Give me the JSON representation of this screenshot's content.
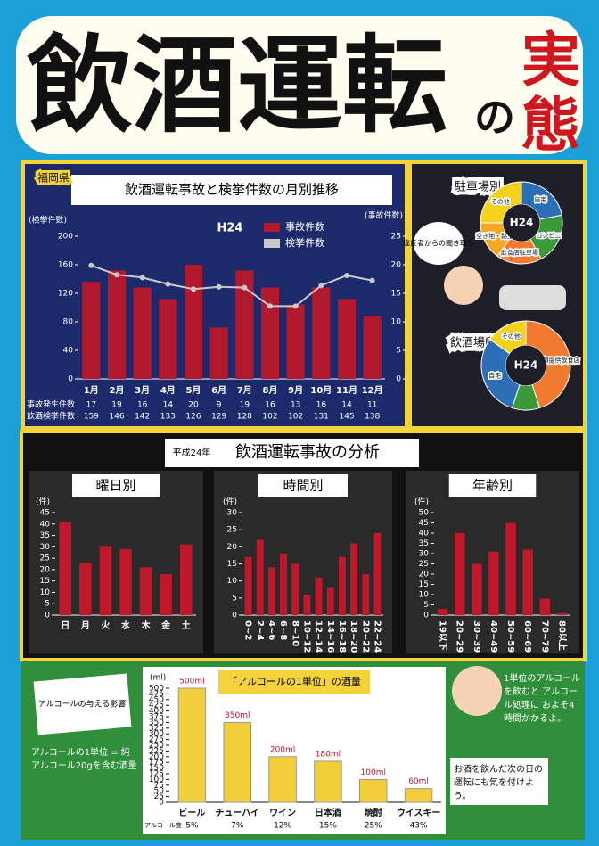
{
  "poster": {
    "title": "飲酒運転",
    "title_no": "の",
    "title_jitsu": "実",
    "title_tai": "態",
    "bubble": "違反者からの聞き取り"
  },
  "analysis": {
    "era": "平成24年",
    "title": "飲酒運転事故の分析"
  },
  "notes": {
    "effect": "アルコールの与える影響",
    "unit_def": "アルコールの1単位 = 純アルコール20gを含む酒量",
    "process": "1単位のアルコールを飲むと アルコール処理に およそ4時間かかるよ。",
    "caution": "お酒を飲んだ次の日の運転にも気を付けよう。"
  },
  "chart_data": [
    {
      "type": "bar_line",
      "badge": "福岡県",
      "title": "飲酒運転事故と検挙件数の月別推移",
      "label": "H24",
      "categories": [
        "1月",
        "2月",
        "3月",
        "4月",
        "5月",
        "6月",
        "7月",
        "8月",
        "9月",
        "10月",
        "11月",
        "12月"
      ],
      "series": [
        {
          "name": "事故件数",
          "color": "#b3192c",
          "axis": "y2",
          "values": [
            17,
            19,
            16,
            14,
            20,
            9,
            19,
            16,
            13,
            16,
            14,
            11
          ]
        },
        {
          "name": "検挙件数",
          "color": "#c9c9c9",
          "values": [
            159,
            146,
            142,
            133,
            126,
            129,
            128,
            102,
            102,
            131,
            145,
            138
          ]
        }
      ],
      "ylabel": "(検挙件数)",
      "y2label": "(事故件数)",
      "ylim": [
        0,
        200
      ],
      "yticks": [
        0,
        40,
        80,
        120,
        160,
        200
      ],
      "y2lim": [
        0,
        25
      ],
      "y2ticks": [
        0,
        5,
        10,
        15,
        20,
        25
      ],
      "table_labels": [
        "事故発生件数",
        "飲酒検挙件数"
      ]
    },
    {
      "type": "donut",
      "title": "駐車場別",
      "center_label": "H24",
      "categories": [
        "自宅",
        "コンビニ",
        "飲食店駐車場",
        "空き地・路上",
        "その他"
      ],
      "colors": [
        "#2c6fb7",
        "#3a9a3a",
        "#f07a30",
        "#f5a623",
        "#f3d21b"
      ],
      "values": [
        22,
        20,
        18,
        15,
        25
      ]
    },
    {
      "type": "donut",
      "title": "飲酒場所別",
      "center_label": "H24",
      "categories": [
        "酒類提供飲食店",
        null,
        "自宅",
        "その他"
      ],
      "colors": [
        "#f07a30",
        "#3a9a3a",
        "#2c6fb7",
        "#f3d21b"
      ],
      "values": [
        45,
        10,
        30,
        15
      ]
    },
    {
      "type": "bar",
      "title": "曜日別",
      "ylabel": "(件)",
      "color": "#c0182b",
      "categories": [
        "日",
        "月",
        "火",
        "水",
        "木",
        "金",
        "土"
      ],
      "values": [
        41,
        23,
        30,
        29,
        21,
        18,
        31
      ],
      "ylim": [
        0,
        45
      ],
      "yticks": [
        0,
        5,
        10,
        15,
        20,
        25,
        30,
        35,
        40,
        45
      ]
    },
    {
      "type": "bar",
      "title": "時間別",
      "ylabel": "(件)",
      "color": "#c0182b",
      "categories": [
        "0~2",
        "2~4",
        "4~6",
        "6~8",
        "8~10",
        "10~12",
        "12~14",
        "14~16",
        "16~18",
        "18~20",
        "20~22",
        "22~24"
      ],
      "values": [
        17,
        22,
        14,
        18,
        15,
        6,
        11,
        8,
        17,
        21,
        12,
        24
      ],
      "ylim": [
        0,
        30
      ],
      "yticks": [
        0,
        5,
        10,
        15,
        20,
        25,
        30
      ]
    },
    {
      "type": "bar",
      "title": "年齢別",
      "ylabel": "(件)",
      "color": "#c0182b",
      "categories": [
        "19以下",
        "20~29",
        "30~39",
        "40~49",
        "50~59",
        "60~69",
        "70~79",
        "80以上"
      ],
      "values": [
        3,
        40,
        25,
        31,
        45,
        32,
        8,
        1
      ],
      "ylim": [
        0,
        50
      ],
      "yticks": [
        0,
        5,
        10,
        15,
        20,
        25,
        30,
        35,
        40,
        45,
        50
      ]
    },
    {
      "type": "bar",
      "title": "「アルコールの1単位」の酒量",
      "ylabel": "(ml)",
      "color": "#f2cf3a",
      "categories": [
        "ビール",
        "チューハイ",
        "ワイン",
        "日本酒",
        "焼酎",
        "ウイスキー"
      ],
      "values": [
        500,
        350,
        200,
        180,
        100,
        60
      ],
      "value_labels": [
        "500ml",
        "350ml",
        "200ml",
        "180ml",
        "100ml",
        "60ml"
      ],
      "row_label": "アルコール度",
      "abv": [
        "5%",
        "7%",
        "12%",
        "15%",
        "25%",
        "43%"
      ],
      "ylim": [
        0,
        500
      ],
      "yticks": [
        0,
        25,
        50,
        75,
        100,
        125,
        150,
        175,
        200,
        225,
        250,
        275,
        300,
        325,
        350,
        375,
        400,
        425,
        450,
        475,
        500
      ]
    }
  ]
}
